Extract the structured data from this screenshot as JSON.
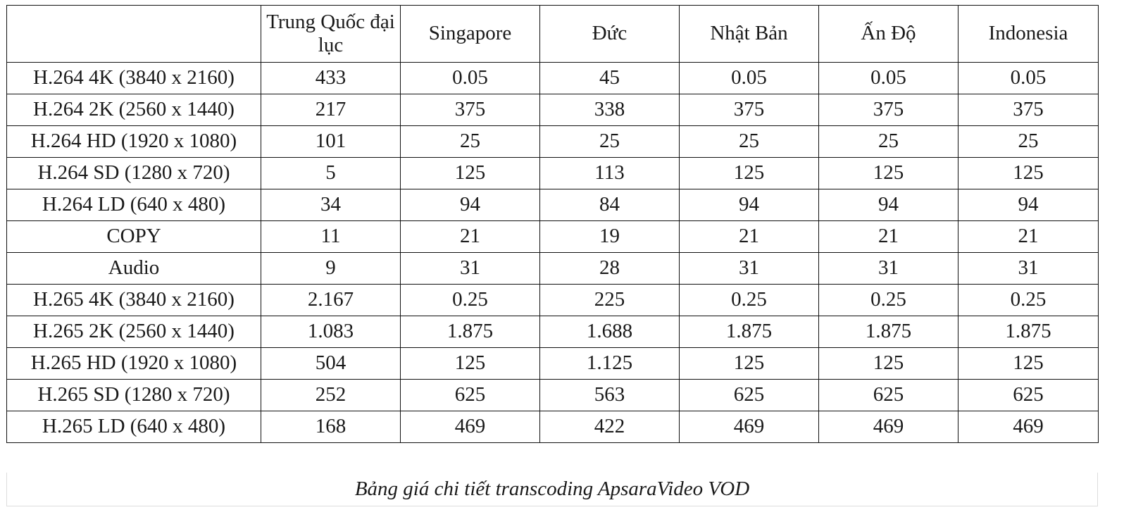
{
  "table": {
    "headers": [
      "",
      "Trung Quốc đại lục",
      "Singapore",
      "Đức",
      "Nhật Bản",
      "Ấn Độ",
      "Indonesia"
    ],
    "rows": [
      [
        "H.264 4K (3840 x 2160)",
        "433",
        "0.05",
        "45",
        "0.05",
        "0.05",
        "0.05"
      ],
      [
        "H.264 2K (2560 x 1440)",
        "217",
        "375",
        "338",
        "375",
        "375",
        "375"
      ],
      [
        "H.264 HD (1920 x 1080)",
        "101",
        "25",
        "25",
        "25",
        "25",
        "25"
      ],
      [
        "H.264 SD (1280 x 720)",
        "5",
        "125",
        "113",
        "125",
        "125",
        "125"
      ],
      [
        "H.264 LD (640 x 480)",
        "34",
        "94",
        "84",
        "94",
        "94",
        "94"
      ],
      [
        "COPY",
        "11",
        "21",
        "19",
        "21",
        "21",
        "21"
      ],
      [
        "Audio",
        "9",
        "31",
        "28",
        "31",
        "31",
        "31"
      ],
      [
        "H.265 4K (3840 x 2160)",
        "2.167",
        "0.25",
        "225",
        "0.25",
        "0.25",
        "0.25"
      ],
      [
        "H.265 2K (2560 x 1440)",
        "1.083",
        "1.875",
        "1.688",
        "1.875",
        "1.875",
        "1.875"
      ],
      [
        "H.265 HD (1920 x 1080)",
        "504",
        "125",
        "1.125",
        "125",
        "125",
        "125"
      ],
      [
        "H.265 SD (1280 x 720)",
        "252",
        "625",
        "563",
        "625",
        "625",
        "625"
      ],
      [
        "H.265 LD (640 x 480)",
        "168",
        "469",
        "422",
        "469",
        "469",
        "469"
      ]
    ]
  },
  "caption": "Bảng giá chi tiết transcoding ApsaraVideo VOD"
}
